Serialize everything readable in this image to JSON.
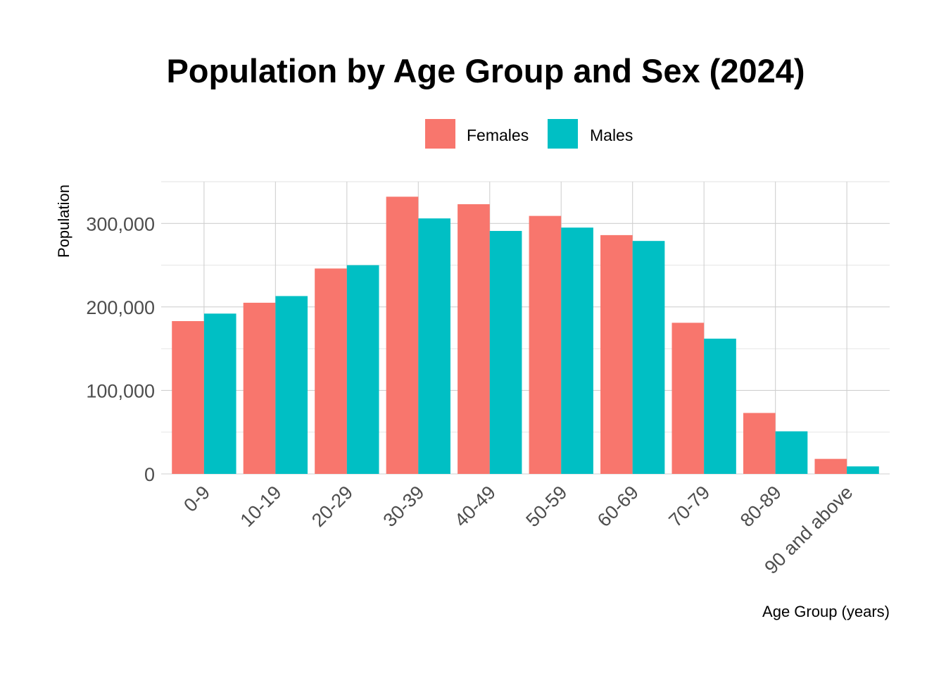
{
  "chart_data": {
    "type": "bar",
    "title": "Population by Age Group and Sex (2024)",
    "xlabel": "Age Group (years)",
    "ylabel": "Population",
    "categories": [
      "0-9",
      "10-19",
      "20-29",
      "30-39",
      "40-49",
      "50-59",
      "60-69",
      "70-79",
      "80-89",
      "90 and above"
    ],
    "series": [
      {
        "name": "Females",
        "color": "#F8766D",
        "values": [
          183000,
          205000,
          246000,
          332000,
          323000,
          309000,
          286000,
          181000,
          73000,
          18000
        ]
      },
      {
        "name": "Males",
        "color": "#00BFC4",
        "values": [
          192000,
          213000,
          250000,
          306000,
          291000,
          295000,
          279000,
          162000,
          51000,
          9000
        ]
      }
    ],
    "y_ticks": [
      0,
      100000,
      200000,
      300000
    ],
    "y_tick_labels": [
      "0",
      "100,000",
      "200,000",
      "300,000"
    ],
    "ylim": [
      0,
      350000
    ],
    "grid": true,
    "legend_position": "top"
  }
}
